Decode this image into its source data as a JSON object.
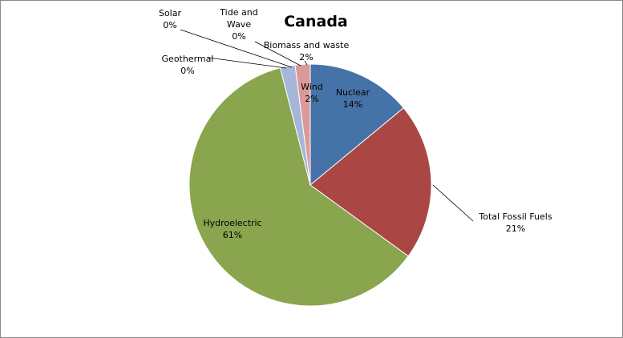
{
  "chart_data": {
    "type": "pie",
    "title": "Canada",
    "slices": [
      {
        "label": "Nuclear",
        "value": 14,
        "value_label": "14%",
        "color": "#4572A7"
      },
      {
        "label": "Total Fossil Fuels",
        "value": 21,
        "value_label": "21%",
        "color": "#AA4643"
      },
      {
        "label": "Hydroelectric",
        "value": 61,
        "value_label": "61%",
        "color": "#89A54E"
      },
      {
        "label": "Geothermal",
        "value": 0,
        "value_label": "0%",
        "color": "#71588F"
      },
      {
        "label": "Solar",
        "value": 0,
        "value_label": "0%",
        "color": "#4198AF"
      },
      {
        "label": "Wind",
        "value": 2,
        "value_label": "2%",
        "color": "#A5B6D9"
      },
      {
        "label": "Tide and Wave",
        "value": 0,
        "value_label": "0%",
        "color": "#DB843D"
      },
      {
        "label": "Biomass and waste",
        "value": 2,
        "value_label": "2%",
        "color": "#DA9A9A"
      }
    ],
    "legend": "none",
    "data_labels": "category name and percentage"
  }
}
